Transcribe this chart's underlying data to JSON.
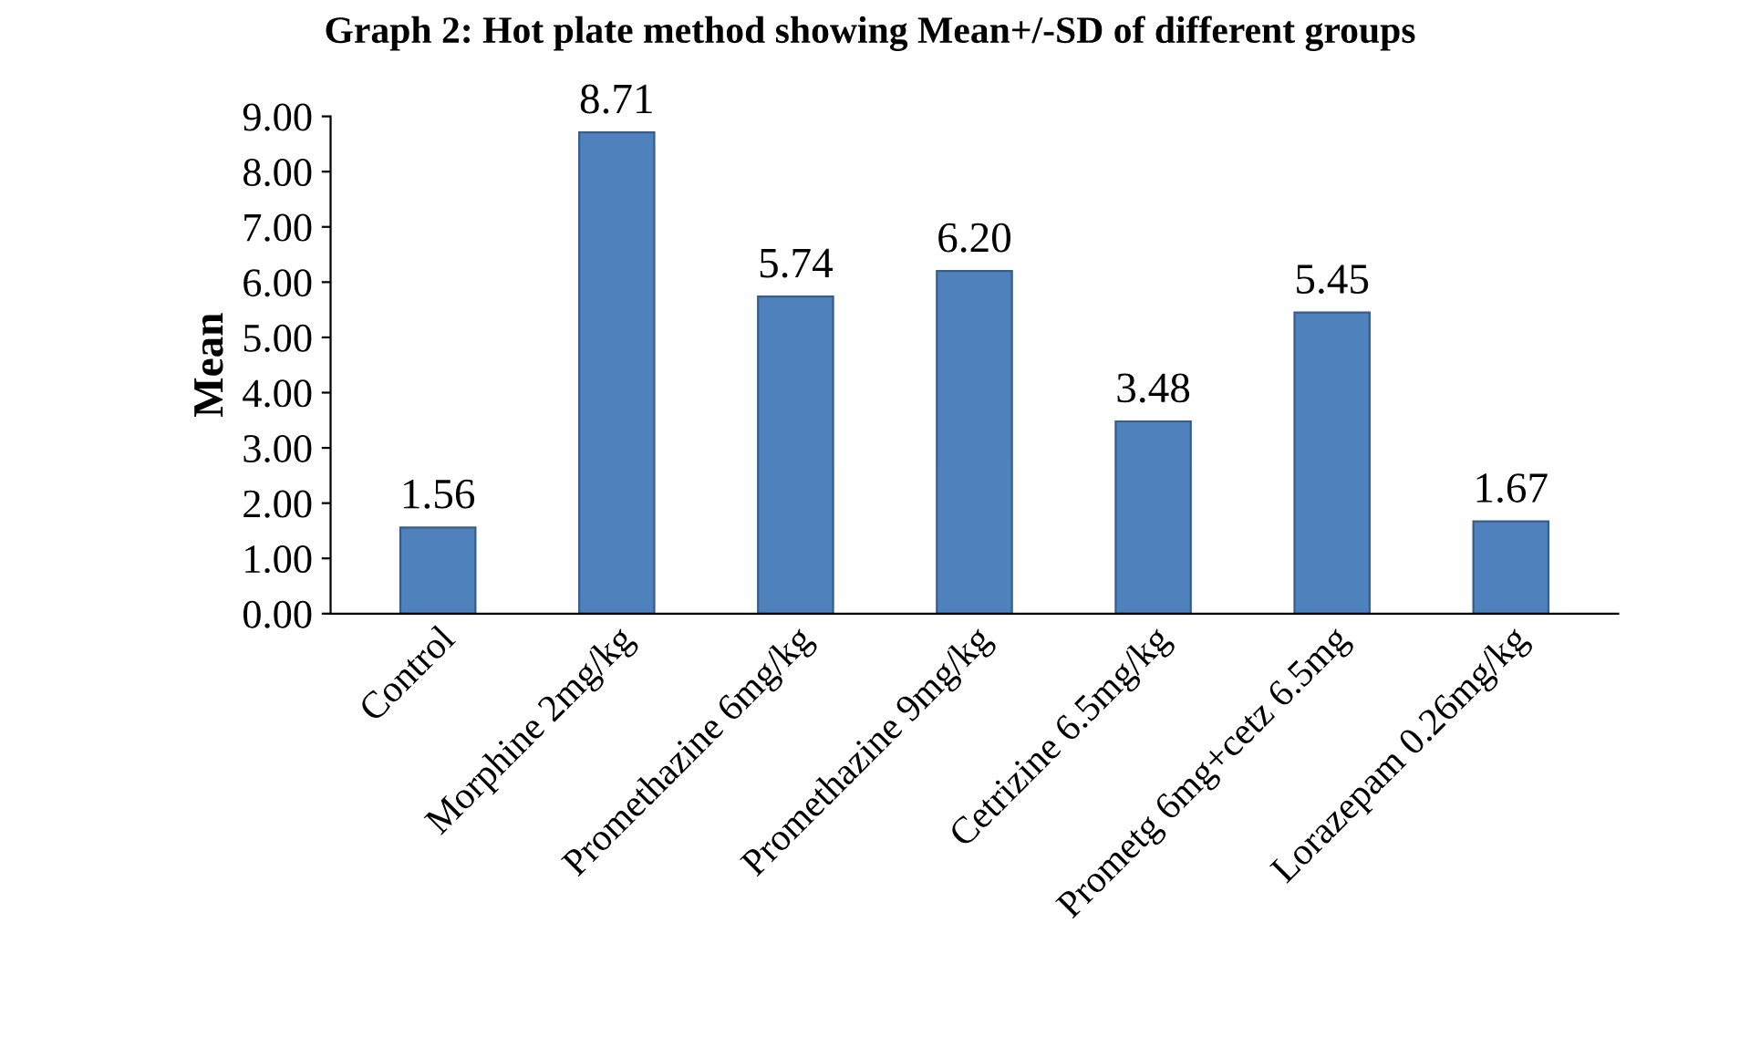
{
  "chart_data": {
    "type": "bar",
    "title": "Graph 2: Hot plate method showing Mean+/-SD of different groups",
    "ylabel": "Mean",
    "categories": [
      "Control",
      "Morphine 2mg/kg",
      "Promethazine 6mg/kg",
      "Promethazine 9mg/kg",
      "Cetrizine 6.5mg/kg",
      "Prometg 6mg+cetz 6.5mg",
      "Lorazepam 0.26mg/kg"
    ],
    "values": [
      1.56,
      8.71,
      5.74,
      6.2,
      3.48,
      5.45,
      1.67
    ],
    "value_labels": [
      "1.56",
      "8.71",
      "5.74",
      "6.20",
      "3.48",
      "5.45",
      "1.67"
    ],
    "color": "#4f81bd",
    "ylim": [
      0,
      9
    ],
    "yticks": [
      {
        "value": 0,
        "label": "0.00"
      },
      {
        "value": 1,
        "label": "1.00"
      },
      {
        "value": 2,
        "label": "2.00"
      },
      {
        "value": 3,
        "label": "3.00"
      },
      {
        "value": 4,
        "label": "4.00"
      },
      {
        "value": 5,
        "label": "5.00"
      },
      {
        "value": 6,
        "label": "6.00"
      },
      {
        "value": 7,
        "label": "7.00"
      },
      {
        "value": 8,
        "label": "8.00"
      },
      {
        "value": 9,
        "label": "9.00"
      }
    ],
    "grid": false,
    "legend": false
  }
}
